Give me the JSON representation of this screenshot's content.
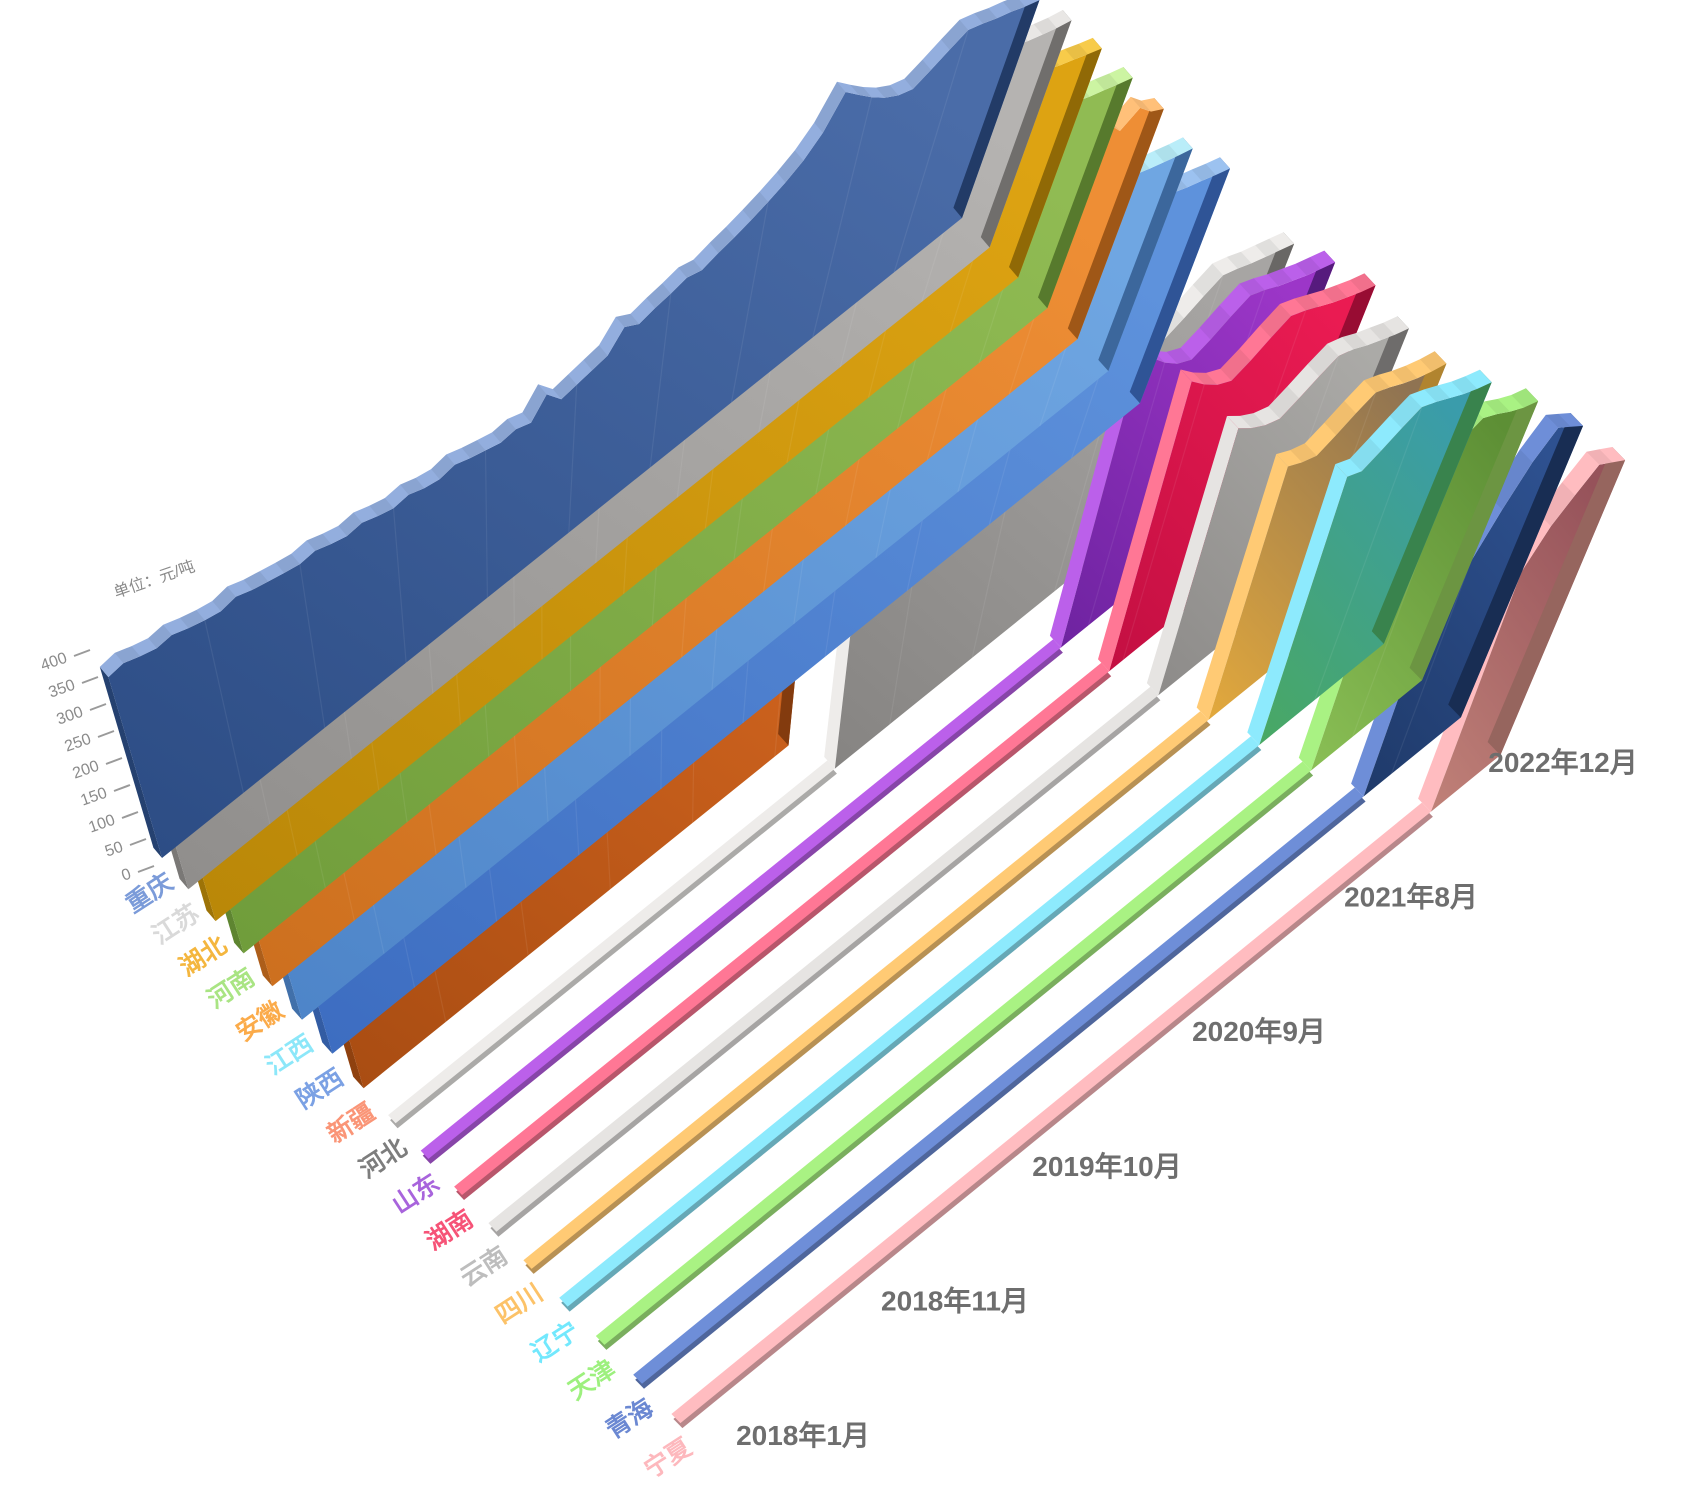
{
  "chart_data": {
    "type": "area",
    "style": "3d-ribbon-waterfall",
    "title": "",
    "background_color": "#ffffff",
    "y_axis": {
      "unit_label": "单位：元/吨",
      "ticks": [
        0,
        50,
        100,
        150,
        200,
        250,
        300,
        350,
        400
      ],
      "max": 400,
      "tick_text_color": "#8a8a8a",
      "tick_mark_color": "#9a9a9a"
    },
    "x_axis": {
      "labels": [
        "2018年1月",
        "2018年11月",
        "2019年10月",
        "2020年9月",
        "2021年8月",
        "2022年12月"
      ],
      "label_color": "#6e6e6e",
      "points": 60,
      "start": "2018年1月",
      "end": "2022年12月"
    },
    "legend_position": "left-bottom-diagonal",
    "grid": false,
    "series": [
      {
        "name": "重庆",
        "label_color": "#7b9bd9",
        "edge_color": "#93aede",
        "face_bottom_left": "#2c4c84",
        "face_top_right": "#4a6ca8",
        "start_index": 0,
        "values": [
          335,
          340,
          332,
          326,
          330,
          322,
          316,
          312,
          318,
          310,
          305,
          300,
          296,
          300,
          292,
          286,
          290,
          282,
          276,
          280,
          272,
          268,
          274,
          266,
          260,
          254,
          258,
          250,
          280,
          252,
          258,
          264,
          270,
          300,
          286,
          294,
          300,
          308,
          302,
          312,
          320,
          330,
          342,
          356,
          374,
          402,
          452,
          428,
          405,
          385,
          370,
          362,
          375,
          390,
          404,
          396,
          386,
          378,
          368,
          360
        ]
      },
      {
        "name": "江苏",
        "label_color": "#d9d9d9",
        "edge_color": "#e9e7e5",
        "face_bottom_left": "#8f8d8b",
        "face_top_right": "#b5b3b1",
        "start_index": 0,
        "values": [
          300,
          305,
          298,
          292,
          296,
          288,
          282,
          279,
          284,
          277,
          272,
          268,
          264,
          268,
          261,
          255,
          259,
          252,
          247,
          250,
          243,
          240,
          245,
          238,
          233,
          228,
          231,
          224,
          221,
          226,
          231,
          237,
          242,
          249,
          257,
          264,
          270,
          277,
          272,
          281,
          288,
          297,
          308,
          321,
          338,
          365,
          445,
          420,
          398,
          380,
          388,
          352,
          384,
          398,
          410,
          402,
          392,
          384,
          376,
          370
        ]
      },
      {
        "name": "湖北",
        "label_color": "#f4b63e",
        "edge_color": "#f7cb4a",
        "face_bottom_left": "#b98708",
        "face_top_right": "#dda312",
        "start_index": 0,
        "values": [
          310,
          316,
          308,
          302,
          306,
          298,
          292,
          288,
          294,
          286,
          281,
          276,
          272,
          276,
          268,
          262,
          306,
          258,
          253,
          356,
          300,
          245,
          251,
          243,
          238,
          232,
          236,
          228,
          225,
          230,
          236,
          242,
          248,
          256,
          264,
          272,
          279,
          286,
          281,
          291,
          299,
          309,
          322,
          337,
          356,
          386,
          480,
          450,
          425,
          400,
          382,
          372,
          386,
          402,
          416,
          407,
          396,
          387,
          377,
          368
        ]
      },
      {
        "name": "河南",
        "label_color": "#a9e483",
        "edge_color": "#ccf4a2",
        "face_bottom_left": "#6f9c3a",
        "face_top_right": "#90bb53",
        "start_index": 0,
        "values": [
          302,
          308,
          300,
          295,
          299,
          291,
          286,
          283,
          288,
          296,
          305,
          312,
          318,
          325,
          331,
          336,
          330,
          322,
          314,
          306,
          298,
          290,
          283,
          277,
          270,
          263,
          267,
          259,
          255,
          261,
          267,
          273,
          280,
          288,
          296,
          305,
          311,
          318,
          313,
          323,
          331,
          341,
          354,
          369,
          388,
          418,
          462,
          438,
          414,
          392,
          376,
          367,
          380,
          395,
          408,
          400,
          390,
          382,
          373,
          365
        ]
      },
      {
        "name": "安徽",
        "label_color": "#fbab4a",
        "edge_color": "#ffc079",
        "face_bottom_left": "#cc6f1e",
        "face_top_right": "#ee8e35",
        "start_index": 0,
        "values": [
          295,
          300,
          293,
          287,
          291,
          284,
          278,
          275,
          280,
          273,
          268,
          264,
          260,
          264,
          257,
          251,
          255,
          248,
          243,
          246,
          239,
          236,
          241,
          234,
          229,
          306,
          262,
          220,
          217,
          222,
          227,
          233,
          239,
          246,
          254,
          261,
          267,
          274,
          269,
          278,
          285,
          294,
          306,
          319,
          336,
          362,
          440,
          415,
          392,
          370,
          398,
          376,
          354,
          390,
          420,
          408,
          380,
          398,
          374,
          360
        ]
      },
      {
        "name": "江西",
        "label_color": "#8ce7f9",
        "edge_color": "#b9edf9",
        "face_bottom_left": "#4d84c8",
        "face_top_right": "#6fa6e2",
        "start_index": 0,
        "values": [
          288,
          293,
          286,
          280,
          284,
          277,
          272,
          269,
          274,
          267,
          262,
          258,
          254,
          258,
          251,
          245,
          249,
          242,
          237,
          240,
          234,
          231,
          236,
          229,
          224,
          219,
          222,
          216,
          213,
          218,
          223,
          228,
          234,
          241,
          248,
          255,
          261,
          268,
          263,
          272,
          279,
          288,
          299,
          312,
          328,
          354,
          430,
          406,
          384,
          364,
          350,
          342,
          355,
          370,
          383,
          375,
          366,
          358,
          350,
          343
        ]
      },
      {
        "name": "陕西",
        "label_color": "#7ba1e4",
        "edge_color": "#9cc2f0",
        "face_bottom_left": "#3c6cc0",
        "face_top_right": "#5e92dc",
        "start_index": 0,
        "values": [
          298,
          304,
          296,
          290,
          294,
          286,
          281,
          278,
          283,
          276,
          271,
          266,
          262,
          266,
          259,
          253,
          257,
          250,
          245,
          248,
          241,
          238,
          243,
          236,
          231,
          226,
          229,
          222,
          219,
          224,
          230,
          236,
          242,
          250,
          258,
          266,
          272,
          280,
          274,
          284,
          292,
          302,
          314,
          328,
          346,
          374,
          448,
          424,
          400,
          380,
          365,
          356,
          370,
          386,
          400,
          392,
          382,
          374,
          365,
          357
        ]
      },
      {
        "name": "新疆",
        "label_color": "#fa9577",
        "edge_color": "#fca688",
        "face_bottom_left": "#a84c12",
        "face_top_right": "#cb611d",
        "start_index": 0,
        "values": [
          292,
          297,
          290,
          284,
          288,
          281,
          276,
          272,
          277,
          270,
          265,
          261,
          257,
          261,
          254,
          248,
          252,
          245,
          240,
          243,
          237,
          233,
          238,
          232,
          227,
          222,
          225,
          218,
          215,
          220,
          225,
          230
        ]
      },
      {
        "name": "河北",
        "label_color": "#7d7d7d",
        "edge_color": "#eeecea",
        "face_bottom_left": "#868482",
        "face_top_right": "#a7a5a3",
        "start_index": 32,
        "values": [
          215,
          226,
          238,
          250,
          258,
          266,
          262,
          272,
          280,
          290,
          302,
          316,
          334,
          360,
          420,
          398,
          376,
          356,
          342,
          334,
          347,
          362,
          376,
          368,
          358,
          350,
          342,
          334
        ]
      },
      {
        "name": "山东",
        "label_color": "#a864dc",
        "edge_color": "#bb60ea",
        "face_bottom_left": "#6e23a0",
        "face_top_right": "#9c36c8",
        "start_index": 46,
        "values": [
          452,
          425,
          400,
          380,
          368,
          380,
          396,
          410,
          400,
          388,
          378,
          368,
          360,
          352
        ]
      },
      {
        "name": "湖南",
        "label_color": "#f65377",
        "edge_color": "#ff7795",
        "face_bottom_left": "#c30f42",
        "face_top_right": "#ea1b52",
        "start_index": 47,
        "values": [
          438,
          415,
          396,
          384,
          396,
          412,
          426,
          416,
          404,
          392,
          382,
          372,
          364
        ]
      },
      {
        "name": "云南",
        "label_color": "#bdbdbd",
        "edge_color": "#e6e4e2",
        "face_bottom_left": "#8d8b89",
        "face_top_right": "#abaaa7",
        "start_index": 48,
        "values": [
          398,
          380,
          366,
          358,
          370,
          384,
          396,
          388,
          376,
          366,
          356,
          348
        ]
      },
      {
        "name": "四川",
        "label_color": "#fcc268",
        "edge_color": "#ffca74",
        "face_bottom_left": "#e3a93c",
        "face_top_right": "#8f7352",
        "start_index": 49,
        "values": [
          372,
          360,
          352,
          364,
          378,
          390,
          380,
          368,
          358,
          350,
          344
        ]
      },
      {
        "name": "辽宁",
        "label_color": "#72e8fd",
        "edge_color": "#8deafd",
        "face_bottom_left": "#49a863",
        "face_top_right": "#3a9cab",
        "start_index": 50,
        "values": [
          388,
          378,
          390,
          404,
          416,
          406,
          394,
          382,
          372,
          364
        ]
      },
      {
        "name": "天津",
        "label_color": "#9df07e",
        "edge_color": "#a9f283",
        "face_bottom_left": "#8abf55",
        "face_top_right": "#5d8f35",
        "start_index": 51,
        "values": [
          402,
          392,
          404,
          418,
          430,
          418,
          404,
          392,
          384
        ]
      },
      {
        "name": "青海",
        "label_color": "#6b88d2",
        "edge_color": "#6e8ed8",
        "face_bottom_left": "#1f3a6a",
        "face_top_right": "#2e5190",
        "start_index": 52,
        "values": [
          170,
          230,
          295,
          350,
          398,
          428,
          412,
          396
        ]
      },
      {
        "name": "宁夏",
        "label_color": "#fdb8bd",
        "edge_color": "#ffbcc0",
        "face_bottom_left": "#c08178",
        "face_top_right": "#96525a",
        "start_index": 54,
        "values": [
          330,
          375,
          400,
          424,
          410,
          396
        ]
      }
    ]
  }
}
